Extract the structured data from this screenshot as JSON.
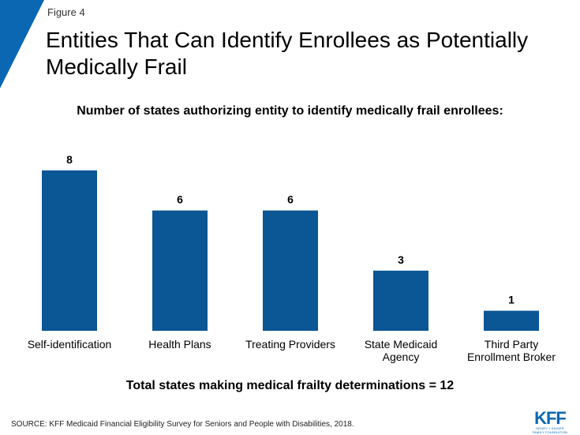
{
  "figure_label": "Figure 4",
  "title": "Entities That Can Identify Enrollees as Potentially Medically Frail",
  "subtitle": "Number of states authorizing entity to identify medically frail enrollees:",
  "total_note": "Total states making medical frailty determinations = 12",
  "source": "SOURCE: KFF Medicaid Financial Eligibility Survey for Seniors and People with Disabilities, 2018.",
  "logo": {
    "mark": "KFF",
    "line1": "HENRY J KAISER",
    "line2": "FAMILY FOUNDATION"
  },
  "colors": {
    "bar": "#0b5694",
    "accent": "#0b67b2"
  },
  "chart_data": {
    "type": "bar",
    "title": "Number of states authorizing entity to identify medically frail enrollees:",
    "categories": [
      [
        "Self-identification"
      ],
      [
        "Health Plans"
      ],
      [
        "Treating Providers"
      ],
      [
        "State Medicaid",
        "Agency"
      ],
      [
        "Third Party",
        "Enrollment Broker"
      ]
    ],
    "values": [
      8,
      6,
      6,
      3,
      1
    ],
    "xlabel": "",
    "ylabel": "",
    "ylim": [
      0,
      8
    ],
    "grid": false,
    "data_labels": true
  }
}
